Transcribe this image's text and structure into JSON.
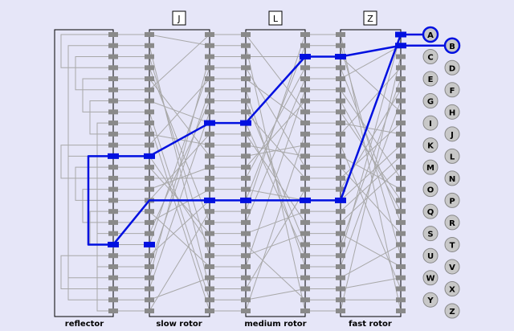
{
  "rotor_windows": [
    {
      "letter": "J"
    },
    {
      "letter": "L"
    },
    {
      "letter": "Z"
    }
  ],
  "components": {
    "reflector": "reflector",
    "slow_rotor": "slow rotor",
    "medium_rotor": "medium rotor",
    "fast_rotor": "fast rotor"
  },
  "lamps": [
    "A",
    "B",
    "C",
    "D",
    "E",
    "F",
    "G",
    "H",
    "I",
    "J",
    "K",
    "L",
    "M",
    "N",
    "O",
    "P",
    "Q",
    "R",
    "S",
    "T",
    "U",
    "V",
    "W",
    "X",
    "Y",
    "Z"
  ],
  "highlighted_lamps": [
    "A",
    "B"
  ],
  "colors": {
    "background": "#e6e6f8",
    "wire": "#a8a8a8",
    "active_path": "#0010e0",
    "contact": "#8a8a8a",
    "lamp": "#c8c8c8",
    "frame": "#000000"
  }
}
